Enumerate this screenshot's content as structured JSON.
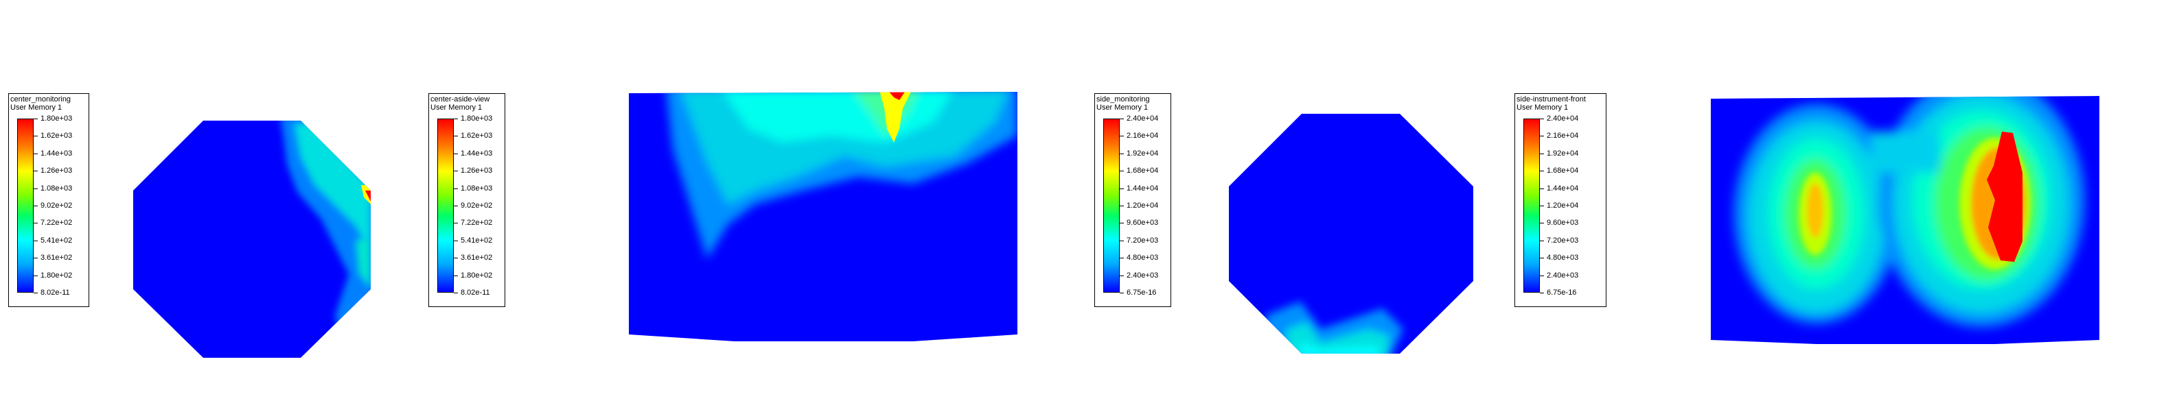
{
  "panels": [
    {
      "title": "center_monitoring",
      "quantity": "User Memory 1",
      "ticks": [
        "1.80e+03",
        "1.62e+03",
        "1.44e+03",
        "1.26e+03",
        "1.08e+03",
        "9.02e+02",
        "7.22e+02",
        "5.41e+02",
        "3.61e+02",
        "1.80e+02",
        "8.02e-11"
      ]
    },
    {
      "title": "center-aside-view",
      "quantity": "User Memory 1",
      "ticks": [
        "1.80e+03",
        "1.62e+03",
        "1.44e+03",
        "1.26e+03",
        "1.08e+03",
        "9.02e+02",
        "7.22e+02",
        "5.41e+02",
        "3.61e+02",
        "1.80e+02",
        "8.02e-11"
      ]
    },
    {
      "title": "side_monitoring",
      "quantity": "User Memory 1",
      "ticks": [
        "2.40e+04",
        "2.16e+04",
        "1.92e+04",
        "1.68e+04",
        "1.44e+04",
        "1.20e+04",
        "9.60e+03",
        "7.20e+03",
        "4.80e+03",
        "2.40e+03",
        "6.75e-16"
      ]
    },
    {
      "title": "side-instrument-front",
      "quantity": "User Memory 1",
      "ticks": [
        "2.40e+04",
        "2.16e+04",
        "1.92e+04",
        "1.68e+04",
        "1.44e+04",
        "1.20e+04",
        "9.60e+03",
        "7.20e+03",
        "4.80e+03",
        "2.40e+03",
        "6.75e-16"
      ]
    }
  ]
}
